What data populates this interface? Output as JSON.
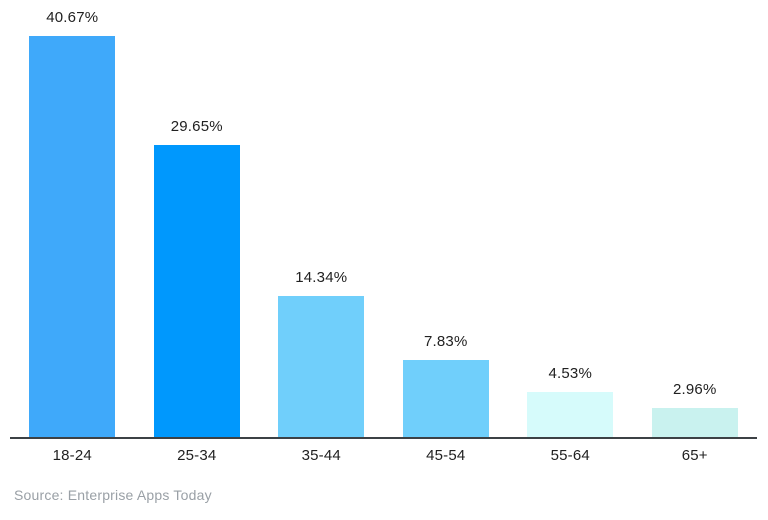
{
  "chart_data": {
    "type": "bar",
    "categories": [
      "18-24",
      "25-34",
      "35-44",
      "45-54",
      "55-64",
      "65+"
    ],
    "values": [
      40.67,
      29.65,
      14.34,
      7.83,
      4.53,
      2.96
    ],
    "value_labels": [
      "40.67%",
      "29.65%",
      "14.34%",
      "7.83%",
      "4.53%",
      "2.96%"
    ],
    "bar_colors": [
      "#3fa9fa",
      "#0098fd",
      "#70cffb",
      "#70cffb",
      "#d6fbfb",
      "#c9f2ef"
    ],
    "title": "",
    "xlabel": "",
    "ylabel": "",
    "ylim": [
      0,
      44
    ],
    "grid": false,
    "legend": false,
    "axis_line_color": "#3c4145",
    "label_text_color": "#212121"
  },
  "source": {
    "text": "Source: Enterprise Apps Today",
    "color": "#9aa0a6"
  },
  "background_color": "#ffffff"
}
